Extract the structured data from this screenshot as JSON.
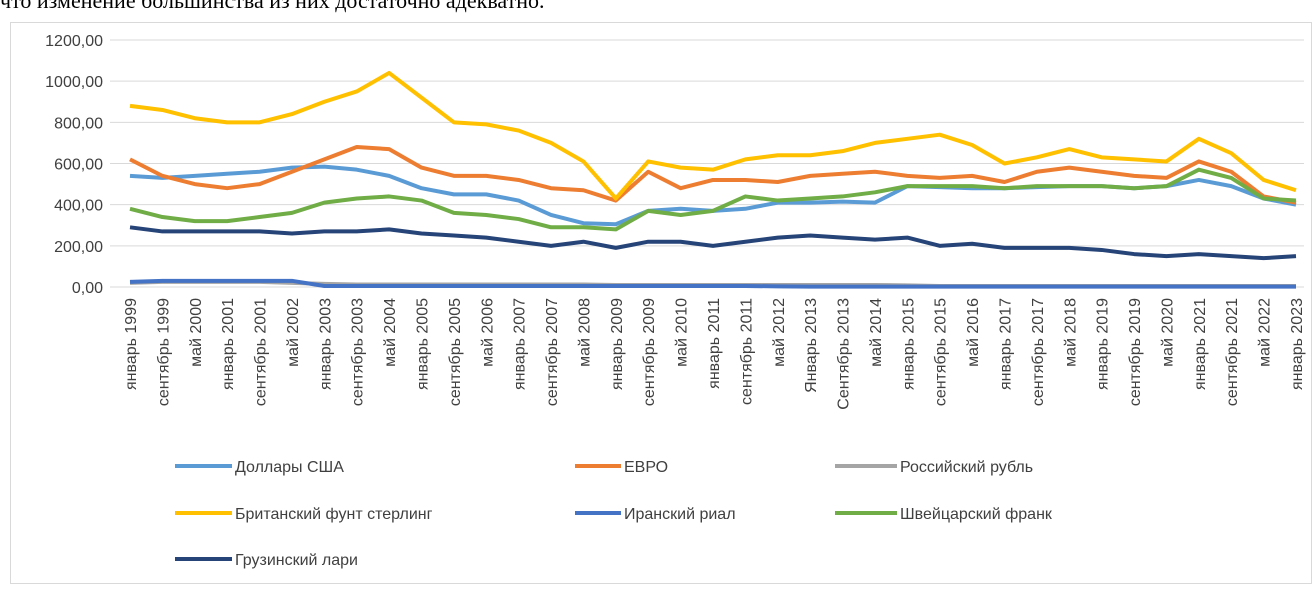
{
  "caption": "что изменение большинства из них достаточно адекватно.",
  "chart_data": {
    "type": "line",
    "categories": [
      "январь 1999",
      "сентябрь 1999",
      "май 2000",
      "январь 2001",
      "сентябрь 2001",
      "май 2002",
      "январь 2003",
      "сентябрь 2003",
      "май 2004",
      "январь 2005",
      "сентябрь 2005",
      "май 2006",
      "январь 2007",
      "сентябрь 2007",
      "май 2008",
      "январь 2009",
      "сентябрь 2009",
      "май 2010",
      "январь 2011",
      "сентябрь 2011",
      "май 2012",
      "Январь 2013",
      "Сентябрь 2013",
      "май 2014",
      "январь 2015",
      "сентябрь 2015",
      "май 2016",
      "январь 2017",
      "сентябрь 2017",
      "май 2018",
      "январь 2019",
      "сентябрь 2019",
      "май 2020",
      "январь 2021",
      "сентябрь 2021",
      "май 2022",
      "январь 2023"
    ],
    "ylim": [
      0,
      1200
    ],
    "yticks": [
      {
        "value": 0,
        "label": "0,00"
      },
      {
        "value": 200,
        "label": "200,00"
      },
      {
        "value": 400,
        "label": "400,00"
      },
      {
        "value": 600,
        "label": "600,00"
      },
      {
        "value": 800,
        "label": "800,00"
      },
      {
        "value": 1000,
        "label": "1000,00"
      },
      {
        "value": 1200,
        "label": "1200,00"
      }
    ],
    "grid": true,
    "legend": "bottom",
    "series": [
      {
        "name": "Доллары США",
        "color": "#5b9bd5",
        "values": [
          540,
          530,
          540,
          550,
          560,
          580,
          585,
          570,
          540,
          480,
          450,
          450,
          420,
          350,
          310,
          305,
          370,
          380,
          370,
          380,
          410,
          410,
          415,
          410,
          490,
          485,
          480,
          480,
          485,
          490,
          490,
          480,
          490,
          520,
          490,
          430,
          400
        ]
      },
      {
        "name": "ЕВРО",
        "color": "#ed7d31",
        "values": [
          620,
          540,
          500,
          480,
          500,
          560,
          620,
          680,
          670,
          580,
          540,
          540,
          520,
          480,
          470,
          420,
          560,
          480,
          520,
          520,
          510,
          540,
          550,
          560,
          540,
          530,
          540,
          510,
          560,
          580,
          560,
          540,
          530,
          610,
          560,
          440,
          410
        ]
      },
      {
        "name": "Российский рубль",
        "color": "#a5a5a5",
        "values": [
          20,
          25,
          25,
          25,
          25,
          20,
          15,
          12,
          12,
          12,
          12,
          12,
          12,
          12,
          12,
          10,
          10,
          10,
          10,
          10,
          10,
          10,
          10,
          10,
          8,
          5,
          5,
          5,
          5,
          5,
          5,
          5,
          5,
          5,
          5,
          5,
          5
        ]
      },
      {
        "name": "Британский фунт стерлинг",
        "color": "#ffc000",
        "values": [
          880,
          860,
          820,
          800,
          800,
          840,
          900,
          950,
          1040,
          920,
          800,
          790,
          760,
          700,
          610,
          430,
          610,
          580,
          570,
          620,
          640,
          640,
          660,
          700,
          720,
          740,
          690,
          600,
          630,
          670,
          630,
          620,
          610,
          720,
          650,
          520,
          470
        ]
      },
      {
        "name": "Иранский риал",
        "color": "#4472c4",
        "values": [
          25,
          30,
          30,
          30,
          30,
          30,
          5,
          5,
          5,
          5,
          5,
          5,
          5,
          5,
          5,
          5,
          5,
          5,
          5,
          5,
          3,
          2,
          2,
          2,
          2,
          2,
          2,
          2,
          2,
          2,
          2,
          2,
          2,
          2,
          2,
          2,
          2
        ]
      },
      {
        "name": "Швейцарский франк",
        "color": "#70ad47",
        "values": [
          380,
          340,
          320,
          320,
          340,
          360,
          410,
          430,
          440,
          420,
          360,
          350,
          330,
          290,
          290,
          280,
          370,
          350,
          370,
          440,
          420,
          430,
          440,
          460,
          490,
          490,
          490,
          480,
          490,
          490,
          490,
          480,
          490,
          570,
          530,
          430,
          420
        ]
      },
      {
        "name": "Грузинский лари",
        "color": "#264478",
        "values": [
          290,
          270,
          270,
          270,
          270,
          260,
          270,
          270,
          280,
          260,
          250,
          240,
          220,
          200,
          220,
          190,
          220,
          220,
          200,
          220,
          240,
          250,
          240,
          230,
          240,
          200,
          210,
          190,
          190,
          190,
          180,
          160,
          150,
          160,
          150,
          140,
          150
        ]
      }
    ]
  }
}
